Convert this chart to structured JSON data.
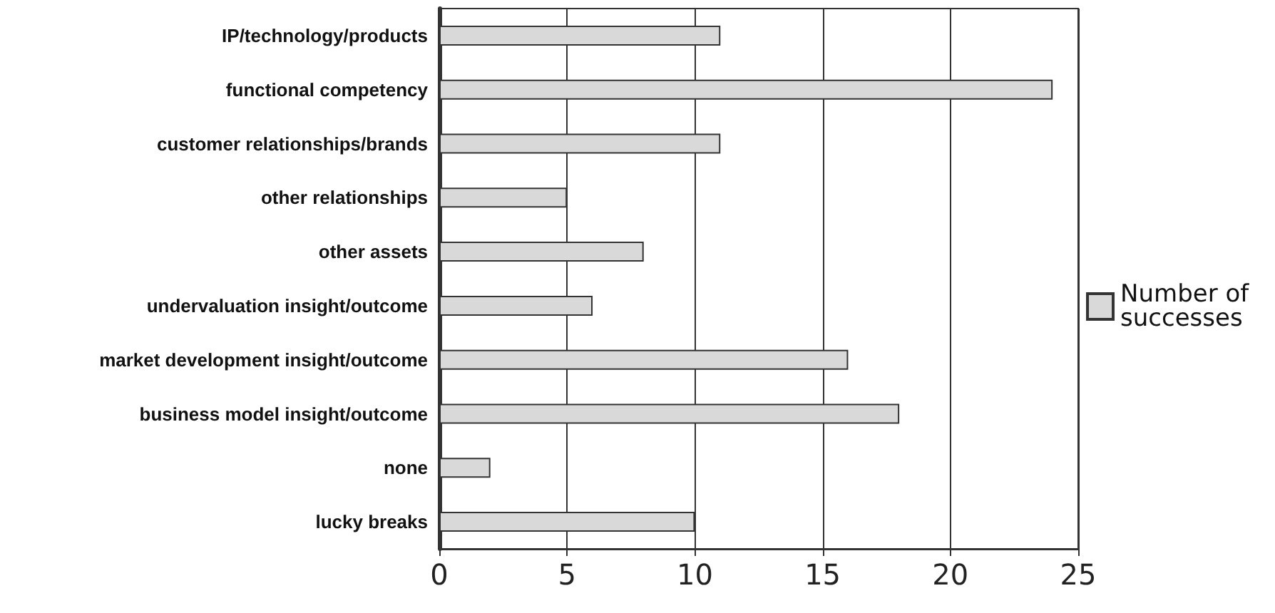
{
  "chart_data": {
    "type": "bar",
    "orientation": "horizontal",
    "categories": [
      "IP/technology/products",
      "functional competency",
      "customer relationships/brands",
      "other relationships",
      "other assets",
      "undervaluation insight/outcome",
      "market development insight/outcome",
      "business model insight/outcome",
      "none",
      "lucky breaks"
    ],
    "series": [
      {
        "name": "Number of successes",
        "color": "#d9d9d9",
        "values": [
          11,
          24,
          11,
          5,
          8,
          6,
          16,
          18,
          2,
          10
        ]
      }
    ],
    "xlim": [
      0,
      25
    ],
    "xticks": [
      0,
      5,
      10,
      15,
      20,
      25
    ],
    "grid": "x",
    "legend": "right"
  }
}
